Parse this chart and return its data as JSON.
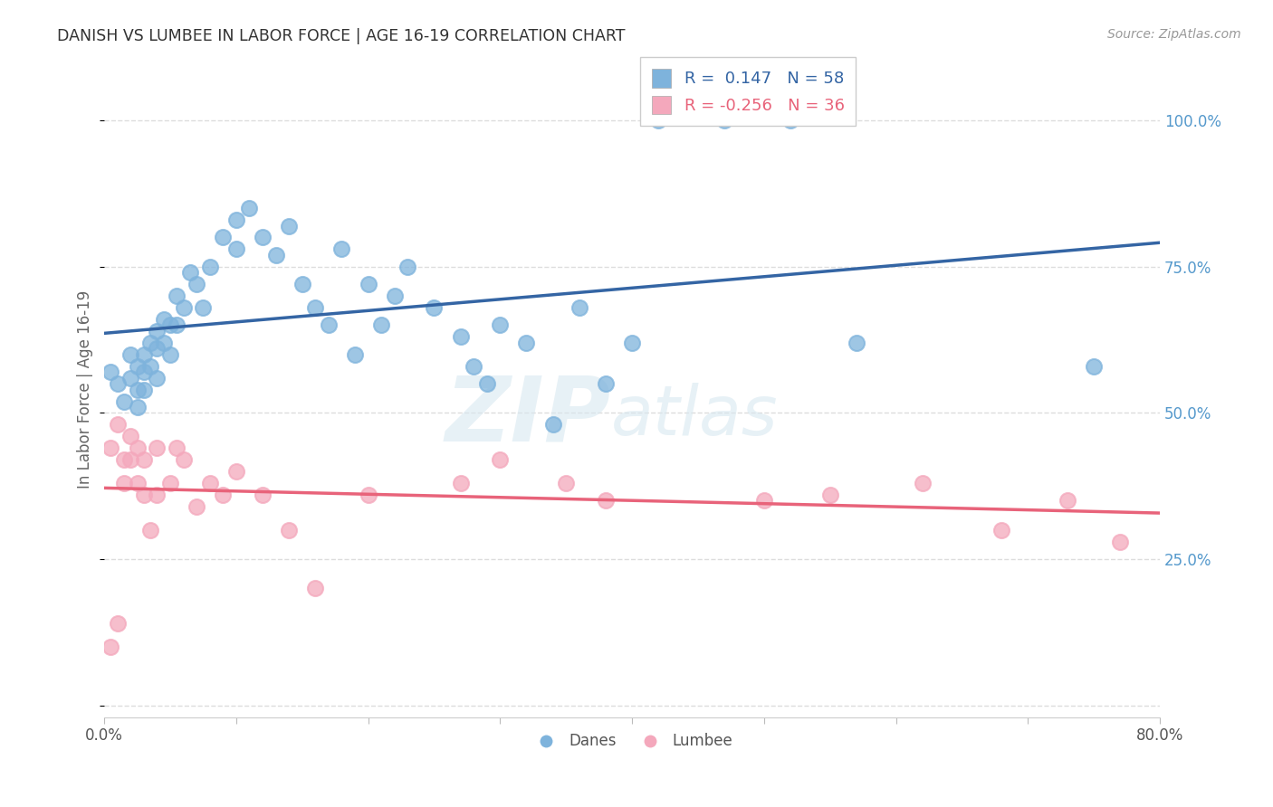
{
  "title": "DANISH VS LUMBEE IN LABOR FORCE | AGE 16-19 CORRELATION CHART",
  "source": "Source: ZipAtlas.com",
  "ylabel": "In Labor Force | Age 16-19",
  "xlim": [
    0.0,
    0.8
  ],
  "ylim": [
    -0.02,
    1.1
  ],
  "xticks": [
    0.0,
    0.1,
    0.2,
    0.3,
    0.4,
    0.5,
    0.6,
    0.7,
    0.8
  ],
  "xticklabels": [
    "0.0%",
    "",
    "",
    "",
    "",
    "",
    "",
    "",
    "80.0%"
  ],
  "yticks": [
    0.0,
    0.25,
    0.5,
    0.75,
    1.0
  ],
  "yticklabels": [
    "",
    "25.0%",
    "50.0%",
    "75.0%",
    "100.0%"
  ],
  "blue_color": "#7EB3DC",
  "pink_color": "#F4A8BC",
  "blue_line_color": "#3465A4",
  "pink_line_color": "#E8637A",
  "background_color": "#FFFFFF",
  "watermark_zip": "ZIP",
  "watermark_atlas": "atlas",
  "legend_r_blue": " 0.147",
  "legend_n_blue": "58",
  "legend_r_pink": "-0.256",
  "legend_n_pink": "36",
  "danes_x": [
    0.005,
    0.01,
    0.015,
    0.02,
    0.02,
    0.025,
    0.025,
    0.025,
    0.03,
    0.03,
    0.03,
    0.035,
    0.035,
    0.04,
    0.04,
    0.04,
    0.045,
    0.045,
    0.05,
    0.05,
    0.055,
    0.055,
    0.06,
    0.065,
    0.07,
    0.075,
    0.08,
    0.09,
    0.1,
    0.1,
    0.11,
    0.12,
    0.13,
    0.14,
    0.15,
    0.16,
    0.17,
    0.18,
    0.19,
    0.2,
    0.21,
    0.22,
    0.23,
    0.25,
    0.27,
    0.28,
    0.29,
    0.3,
    0.32,
    0.34,
    0.36,
    0.38,
    0.4,
    0.42,
    0.47,
    0.52,
    0.57,
    0.75
  ],
  "danes_y": [
    0.57,
    0.55,
    0.52,
    0.6,
    0.56,
    0.58,
    0.54,
    0.51,
    0.6,
    0.57,
    0.54,
    0.62,
    0.58,
    0.64,
    0.61,
    0.56,
    0.66,
    0.62,
    0.65,
    0.6,
    0.7,
    0.65,
    0.68,
    0.74,
    0.72,
    0.68,
    0.75,
    0.8,
    0.83,
    0.78,
    0.85,
    0.8,
    0.77,
    0.82,
    0.72,
    0.68,
    0.65,
    0.78,
    0.6,
    0.72,
    0.65,
    0.7,
    0.75,
    0.68,
    0.63,
    0.58,
    0.55,
    0.65,
    0.62,
    0.48,
    0.68,
    0.55,
    0.62,
    1.0,
    1.0,
    1.0,
    0.62,
    0.58
  ],
  "lumbee_x": [
    0.005,
    0.005,
    0.01,
    0.01,
    0.015,
    0.015,
    0.02,
    0.02,
    0.025,
    0.025,
    0.03,
    0.03,
    0.035,
    0.04,
    0.04,
    0.05,
    0.055,
    0.06,
    0.07,
    0.08,
    0.09,
    0.1,
    0.12,
    0.14,
    0.16,
    0.2,
    0.27,
    0.3,
    0.35,
    0.38,
    0.5,
    0.55,
    0.62,
    0.68,
    0.73,
    0.77
  ],
  "lumbee_y": [
    0.44,
    0.1,
    0.48,
    0.14,
    0.42,
    0.38,
    0.46,
    0.42,
    0.44,
    0.38,
    0.36,
    0.42,
    0.3,
    0.44,
    0.36,
    0.38,
    0.44,
    0.42,
    0.34,
    0.38,
    0.36,
    0.4,
    0.36,
    0.3,
    0.2,
    0.36,
    0.38,
    0.42,
    0.38,
    0.35,
    0.35,
    0.36,
    0.38,
    0.3,
    0.35,
    0.28
  ]
}
